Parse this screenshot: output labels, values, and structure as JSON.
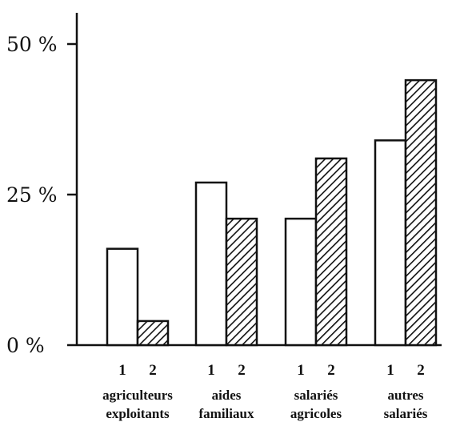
{
  "chart_data": {
    "type": "bar",
    "categories": [
      [
        "agriculteurs",
        "exploitants"
      ],
      [
        "aides",
        "familiaux"
      ],
      [
        "salariés",
        "agricoles"
      ],
      [
        "autres",
        "salariés"
      ]
    ],
    "series": [
      {
        "name": "1",
        "values": [
          16,
          27,
          21,
          34
        ],
        "fill": "#ffffff"
      },
      {
        "name": "2",
        "values": [
          4,
          21,
          31,
          44
        ],
        "fill": "hatched"
      }
    ],
    "yticks": [
      {
        "value": 0,
        "label": "0 %"
      },
      {
        "value": 25,
        "label": "25 %"
      },
      {
        "value": 50,
        "label": "50 %"
      }
    ],
    "ylim": [
      0,
      50
    ],
    "title": "",
    "xlabel": "",
    "ylabel": "",
    "grid": false,
    "colors": {
      "ink": "#111111",
      "background": "#ffffff"
    }
  }
}
